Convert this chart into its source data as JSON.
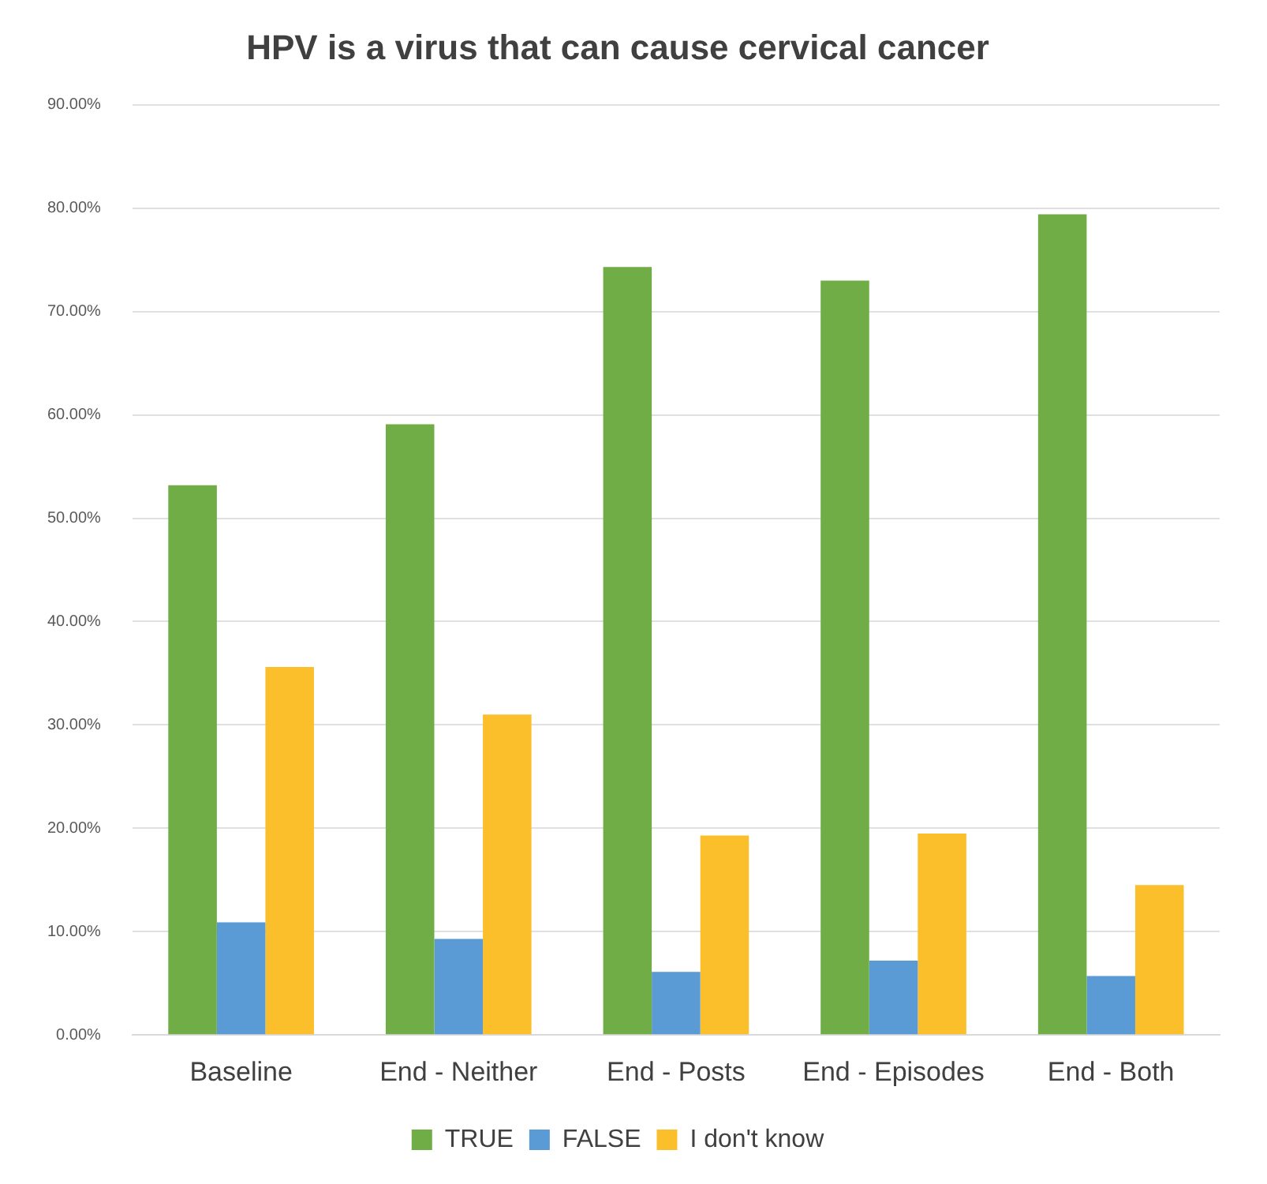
{
  "chart_data": {
    "type": "bar",
    "title": "HPV is a virus that can cause cervical cancer",
    "categories": [
      "Baseline",
      "End - Neither",
      "End - Posts",
      "End - Episodes",
      "End - Both"
    ],
    "series": [
      {
        "name": "TRUE",
        "color": "#70ad47",
        "values": [
          53.2,
          59.1,
          74.3,
          73.0,
          79.4
        ]
      },
      {
        "name": "FALSE",
        "color": "#5b9bd5",
        "values": [
          10.9,
          9.3,
          6.1,
          7.2,
          5.7
        ]
      },
      {
        "name": "I don't know",
        "color": "#fbbf2c",
        "values": [
          35.6,
          31.0,
          19.3,
          19.5,
          14.5
        ]
      }
    ],
    "ylim": [
      0,
      90
    ],
    "yticks": [
      {
        "value": 0,
        "label": "0.00%"
      },
      {
        "value": 10,
        "label": "10.00%"
      },
      {
        "value": 20,
        "label": "20.00%"
      },
      {
        "value": 30,
        "label": "30.00%"
      },
      {
        "value": 40,
        "label": "40.00%"
      },
      {
        "value": 50,
        "label": "50.00%"
      },
      {
        "value": 60,
        "label": "60.00%"
      },
      {
        "value": 70,
        "label": "70.00%"
      },
      {
        "value": 80,
        "label": "80.00%"
      },
      {
        "value": 90,
        "label": "90.00%"
      }
    ],
    "grid": "y",
    "legend": "bottom"
  }
}
